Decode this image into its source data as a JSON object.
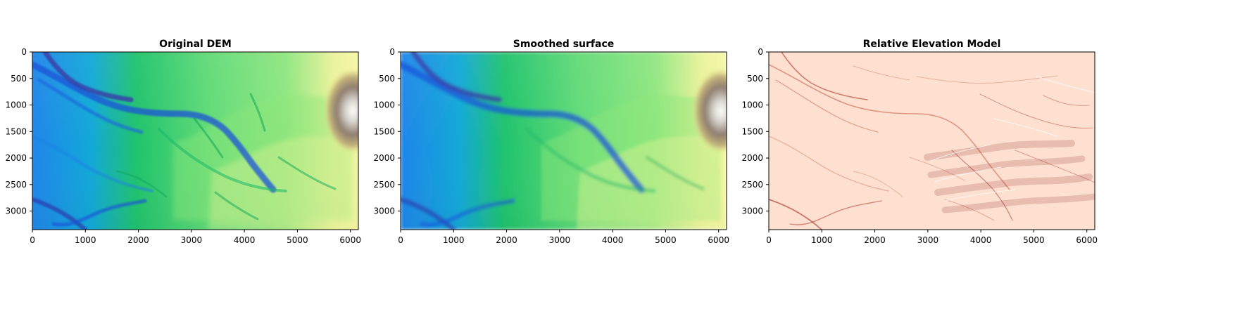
{
  "chart_data": [
    {
      "type": "heatmap",
      "title": "Original DEM",
      "colormap": "terrain",
      "x_ticks": [
        0,
        1000,
        2000,
        3000,
        4000,
        5000,
        6000
      ],
      "y_ticks": [
        0,
        500,
        1000,
        1500,
        2000,
        2500,
        3000
      ],
      "xlim": [
        0,
        6150
      ],
      "ylim": [
        3350,
        0
      ],
      "colors": [
        "#3a3aa8",
        "#0a8df0",
        "#19c86f",
        "#6fe07c",
        "#f2f59a",
        "#8f7c70",
        "#ffffff"
      ]
    },
    {
      "type": "heatmap",
      "title": "Smoothed surface",
      "colormap": "terrain",
      "x_ticks": [
        0,
        1000,
        2000,
        3000,
        4000,
        5000,
        6000
      ],
      "y_ticks": [
        0,
        500,
        1000,
        1500,
        2000,
        2500,
        3000
      ],
      "xlim": [
        0,
        6150
      ],
      "ylim": [
        3350,
        0
      ],
      "colors": [
        "#3a3aa8",
        "#0a8df0",
        "#19c86f",
        "#6fe07c",
        "#f2f59a",
        "#8f7c70",
        "#ffffff"
      ]
    },
    {
      "type": "heatmap",
      "title": "Relative Elevation Model",
      "colormap": "reds",
      "x_ticks": [
        0,
        1000,
        2000,
        3000,
        4000,
        5000,
        6000
      ],
      "y_ticks": [
        0,
        500,
        1000,
        1500,
        2000,
        2500,
        3000
      ],
      "xlim": [
        0,
        6150
      ],
      "ylim": [
        3350,
        0
      ],
      "colors": [
        "#ffffff",
        "#fde0d0",
        "#e88f6f",
        "#b2382b",
        "#6e1016"
      ]
    }
  ]
}
